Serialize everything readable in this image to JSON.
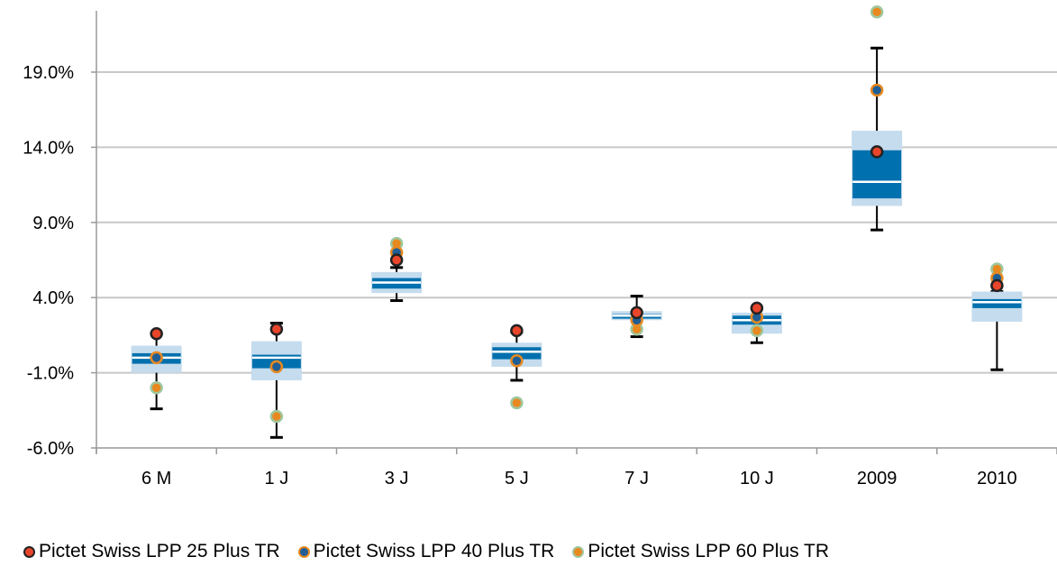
{
  "chart_data": {
    "type": "boxplot",
    "categories": [
      "6 M",
      "1 J",
      "3 J",
      "5 J",
      "7 J",
      "10 J",
      "2009",
      "2010"
    ],
    "y_tick_labels": [
      "-6.0%",
      "-1.0%",
      "4.0%",
      "9.0%",
      "14.0%",
      "19.0%"
    ],
    "y_ticks": [
      -6,
      -1,
      4,
      9,
      14,
      19
    ],
    "ylim": [
      -6,
      23
    ],
    "grid": true,
    "legend_position": "bottom",
    "boxes": [
      {
        "category": "6 M",
        "whisker_low": -3.4,
        "q1": -1.0,
        "q1_inner": -0.4,
        "median": 0.0,
        "q3_inner": 0.3,
        "q3": 0.8,
        "whisker_high": 1.6
      },
      {
        "category": "1 J",
        "whisker_low": -5.3,
        "q1": -1.5,
        "q1_inner": -0.7,
        "median": 0.0,
        "q3_inner": 0.2,
        "q3": 1.1,
        "whisker_high": 2.3
      },
      {
        "category": "3 J",
        "whisker_low": 3.8,
        "q1": 4.3,
        "q1_inner": 4.6,
        "median": 5.0,
        "q3_inner": 5.3,
        "q3": 5.7,
        "whisker_high": 6.0
      },
      {
        "category": "5 J",
        "whisker_low": -1.5,
        "q1": -0.6,
        "q1_inner": -0.1,
        "median": 0.4,
        "q3_inner": 0.7,
        "q3": 1.0,
        "whisker_high": 1.7
      },
      {
        "category": "7 J",
        "whisker_low": 1.4,
        "q1": 2.5,
        "q1_inner": 2.6,
        "median": 2.8,
        "q3_inner": 2.9,
        "q3": 3.1,
        "whisker_high": 4.1
      },
      {
        "category": "10 J",
        "whisker_low": 1.0,
        "q1": 1.6,
        "q1_inner": 2.2,
        "median": 2.5,
        "q3_inner": 2.8,
        "q3": 3.0,
        "whisker_high": 3.3
      },
      {
        "category": "2009",
        "whisker_low": 8.5,
        "q1": 10.1,
        "q1_inner": 10.6,
        "median": 11.7,
        "q3_inner": 13.8,
        "q3": 15.1,
        "whisker_high": 20.6
      },
      {
        "category": "2010",
        "whisker_low": -0.8,
        "q1": 2.4,
        "q1_inner": 3.3,
        "median": 3.7,
        "q3_inner": 3.9,
        "q3": 4.4,
        "whisker_high": 4.4
      }
    ],
    "series": [
      {
        "name": "Pictet Swiss LPP 25 Plus TR",
        "color": "#e8452a",
        "values": [
          1.6,
          1.9,
          6.5,
          1.8,
          3.0,
          3.3,
          13.7,
          4.8
        ]
      },
      {
        "name": "Pictet Swiss LPP 40 Plus TR",
        "color": "#1f5e96",
        "values": [
          0.0,
          -0.6,
          7.0,
          -0.2,
          2.5,
          2.7,
          17.8,
          5.3
        ]
      },
      {
        "name": "Pictet Swiss LPP 60 Plus TR",
        "color": "#e8891f",
        "values": [
          -2.0,
          -3.9,
          7.6,
          -3.0,
          1.9,
          1.8,
          23.0,
          5.9
        ]
      }
    ],
    "colors": {
      "box_outer": "#c5dcee",
      "box_inner": "#0070ae",
      "median_line": "#ffffff",
      "whisker": "#000000",
      "grid": "#c8c8c8",
      "marker_ring": "#8fbc8f"
    }
  }
}
